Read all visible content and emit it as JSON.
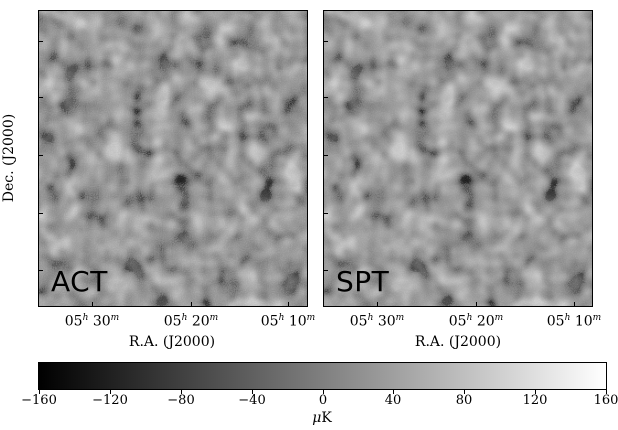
{
  "panels": [
    {
      "label": "ACT"
    },
    {
      "label": "SPT"
    }
  ],
  "axes": {
    "ylabel": "Dec. (J2000)",
    "xlabel": "R.A. (J2000)",
    "xticks": [
      {
        "h": "05",
        "hsup": "h",
        "m": "30",
        "msup": "m"
      },
      {
        "h": "05",
        "hsup": "h",
        "m": "20",
        "msup": "m"
      },
      {
        "h": "05",
        "hsup": "h",
        "m": "10",
        "msup": "m"
      }
    ]
  },
  "colorbar": {
    "ticks": [
      "−160",
      "−120",
      "−80",
      "−40",
      "0",
      "40",
      "80",
      "120",
      "160"
    ],
    "range": [
      -160,
      160
    ],
    "unit_prefix": "μ",
    "unit": "K",
    "colormap": [
      "#000000",
      "#ffffff"
    ]
  }
}
